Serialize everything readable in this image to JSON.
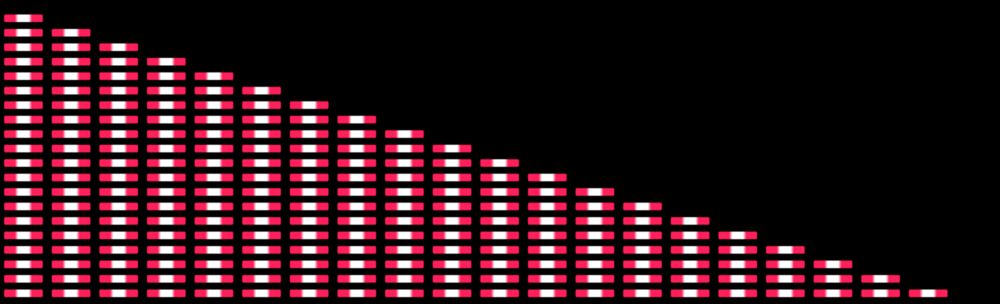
{
  "colors": {
    "background": "#000000",
    "pill_primary": "#ff1f5a",
    "pill_highlight": "#ffffff"
  },
  "pattern": {
    "shape": "staircase-triangle",
    "column_count": 20,
    "column_heights": [
      20,
      19,
      18,
      17,
      16,
      15,
      14,
      13,
      12,
      11,
      10,
      9,
      8,
      7,
      6,
      5,
      4,
      3,
      2,
      1
    ],
    "faded_cells": [
      {
        "column": 13,
        "row": 7
      },
      {
        "column": 14,
        "row": 6
      }
    ]
  }
}
